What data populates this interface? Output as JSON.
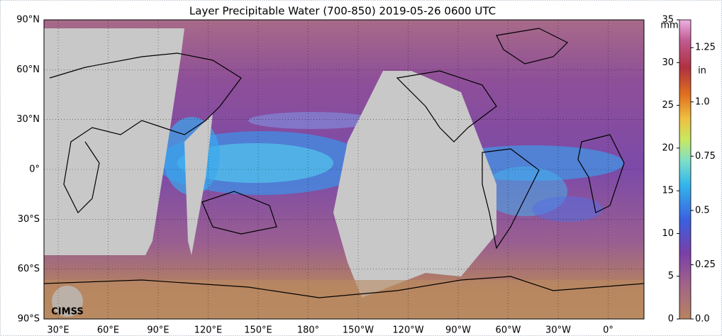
{
  "title": "Layer Precipitable Water (700-850)  2019-05-26 0600 UTC",
  "latitude_labels": [
    "90°N",
    "60°N",
    "30°N",
    "0°",
    "30°S",
    "60°S",
    "90°S"
  ],
  "longitude_labels": [
    "30°E",
    "60°E",
    "90°E",
    "120°E",
    "150°E",
    "180°",
    "150°W",
    "120°W",
    "90°W",
    "60°W",
    "30°W",
    "0°"
  ],
  "logo": "CIMSS",
  "colorbar": {
    "mm_unit": "mm",
    "mm_lim": [
      0,
      35
    ],
    "mm_ticks": [
      0,
      5,
      10,
      15,
      20,
      25,
      30,
      35
    ],
    "in_unit": "in",
    "in_lim": [
      0,
      1.378
    ],
    "in_ticks": [
      {
        "value": 0,
        "label": "0.0"
      },
      0.25,
      0.5,
      0.75,
      {
        "value": 1,
        "label": "1.0"
      },
      1.25
    ]
  }
}
